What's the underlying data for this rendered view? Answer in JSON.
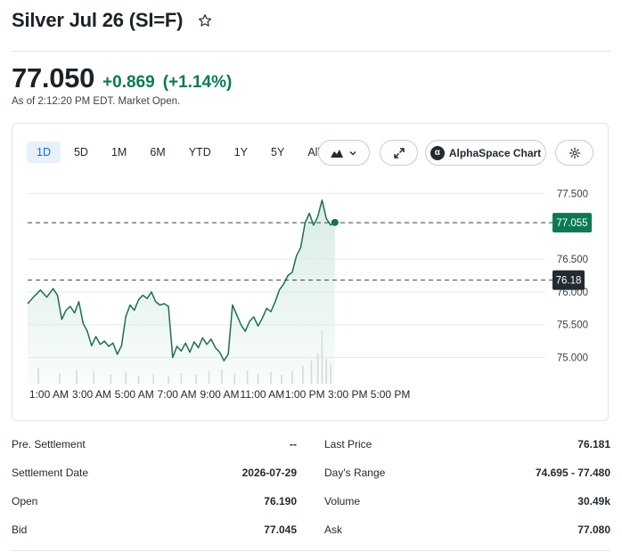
{
  "quote": {
    "title": "Silver Jul 26 (SI=F)",
    "price": "77.050",
    "change": "+0.869",
    "change_pct": "(+1.14%)",
    "as_of": "As of 2:12:20 PM EDT. Market Open."
  },
  "toolbar": {
    "ranges": [
      "1D",
      "5D",
      "1M",
      "6M",
      "YTD",
      "1Y",
      "5Y",
      "All"
    ],
    "active_range": "1D",
    "alpha_label": "AlphaSpace Chart",
    "alpha_badge": "α"
  },
  "colors": {
    "positive": "#0b7a53",
    "line": "#1d6f4f",
    "area": "#d6ece3",
    "active_range": "#0f69ff"
  },
  "chart_data": {
    "type": "line",
    "x_tick_labels": [
      "1:00 AM",
      "3:00 AM",
      "5:00 AM",
      "7:00 AM",
      "9:00 AM",
      "11:00 AM",
      "1:00 PM",
      "3:00 PM",
      "5:00 PM"
    ],
    "x_tick_hours": [
      1,
      3,
      5,
      7,
      9,
      11,
      13,
      15,
      17
    ],
    "x_range_hours": [
      0,
      18
    ],
    "y_tick_labels": [
      "77.500",
      "76.500",
      "76.000",
      "75.500",
      "75.000"
    ],
    "y_tick_values": [
      77.5,
      76.5,
      76.0,
      75.5,
      75.0
    ],
    "ylim": [
      74.6,
      77.75
    ],
    "current_price_label": "77.055",
    "current_price_value": 77.055,
    "prev_settlement_label": "76.18",
    "prev_settlement_value": 76.18,
    "series": [
      {
        "x": [
          0,
          0.3,
          0.6,
          0.9,
          1.2,
          1.4,
          1.6,
          1.8,
          2.0,
          2.2,
          2.4,
          2.6,
          2.8,
          3.0,
          3.2,
          3.4,
          3.6,
          3.8,
          4.0,
          4.2,
          4.4,
          4.6,
          4.8,
          5.0,
          5.2,
          5.4,
          5.6,
          5.8,
          6.0,
          6.2,
          6.4,
          6.6,
          6.8,
          7.0,
          7.2,
          7.4,
          7.6,
          7.8,
          8.0,
          8.2,
          8.4,
          8.6,
          8.8,
          9.0,
          9.2,
          9.4,
          9.6,
          9.8,
          10.0,
          10.2,
          10.4,
          10.6,
          10.8,
          11.0,
          11.2,
          11.4,
          11.6,
          11.8,
          12.0,
          12.2,
          12.4,
          12.6,
          12.8,
          13.0,
          13.2,
          13.4,
          13.6,
          13.8,
          14.0,
          14.2,
          14.4
        ],
        "y": [
          75.82,
          75.93,
          76.03,
          75.92,
          76.05,
          75.95,
          75.58,
          75.72,
          75.78,
          75.68,
          75.85,
          75.52,
          75.4,
          75.18,
          75.32,
          75.2,
          75.25,
          75.17,
          75.22,
          75.05,
          75.18,
          75.62,
          75.8,
          75.72,
          75.88,
          75.95,
          75.9,
          76.0,
          75.85,
          75.8,
          75.82,
          75.78,
          75.0,
          75.17,
          75.1,
          75.22,
          75.08,
          75.24,
          75.15,
          75.3,
          75.2,
          75.28,
          75.15,
          75.08,
          74.95,
          75.05,
          75.8,
          75.65,
          75.5,
          75.4,
          75.55,
          75.62,
          75.48,
          75.6,
          75.75,
          75.7,
          75.85,
          76.03,
          76.12,
          76.25,
          76.3,
          76.55,
          76.68,
          77.05,
          77.2,
          77.02,
          77.15,
          77.4,
          77.12,
          77.02,
          77.06
        ]
      }
    ],
    "volume": {
      "x": [
        0.5,
        1.5,
        2.3,
        3.1,
        3.9,
        4.6,
        5.2,
        5.9,
        6.6,
        7.2,
        7.9,
        8.5,
        9.1,
        9.7,
        10.3,
        10.8,
        11.4,
        11.9,
        12.4,
        12.9,
        13.3,
        13.6,
        13.8,
        14.0,
        14.2
      ],
      "v": [
        18,
        12,
        16,
        14,
        10,
        13,
        9,
        11,
        8,
        12,
        10,
        14,
        16,
        12,
        15,
        11,
        13,
        10,
        14,
        20,
        26,
        34,
        60,
        28,
        22
      ]
    }
  },
  "stats": {
    "left": [
      {
        "label": "Pre. Settlement",
        "value": "--"
      },
      {
        "label": "Settlement Date",
        "value": "2026-07-29"
      },
      {
        "label": "Open",
        "value": "76.190"
      },
      {
        "label": "Bid",
        "value": "77.045"
      }
    ],
    "right": [
      {
        "label": "Last Price",
        "value": "76.181"
      },
      {
        "label": "Day's Range",
        "value": "74.695 - 77.480"
      },
      {
        "label": "Volume",
        "value": "30.49k"
      },
      {
        "label": "Ask",
        "value": "77.080"
      }
    ]
  }
}
